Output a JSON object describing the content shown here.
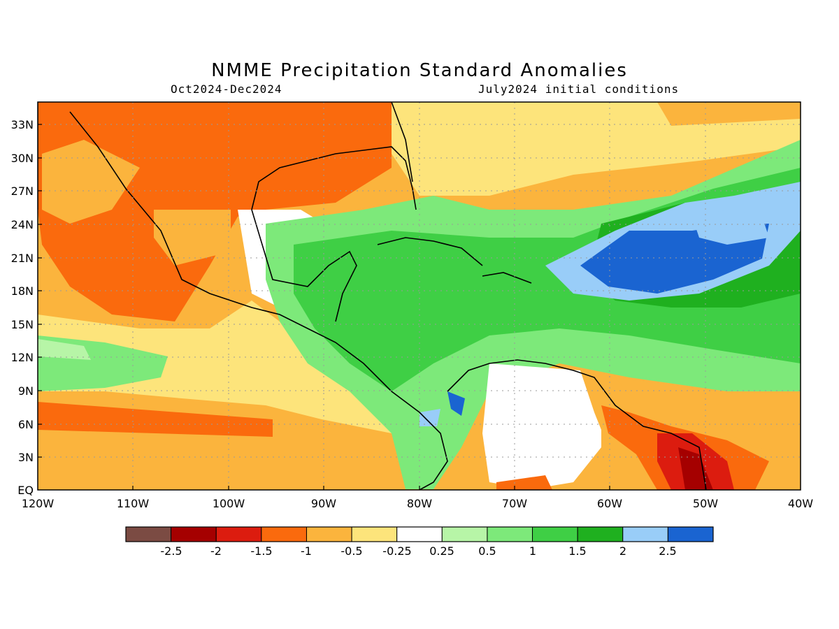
{
  "title": "NMME Precipitation Standard Anomalies",
  "period": "Oct2024-Dec2024",
  "initial_conditions": "July2024 initial conditions",
  "lat_labels": [
    "33N",
    "30N",
    "27N",
    "24N",
    "21N",
    "18N",
    "15N",
    "12N",
    "9N",
    "6N",
    "3N",
    "EQ"
  ],
  "lon_labels": [
    "120W",
    "110W",
    "100W",
    "90W",
    "80W",
    "70W",
    "60W",
    "50W",
    "40W"
  ],
  "colorbar": {
    "colors": [
      "#7b4b43",
      "#a50000",
      "#dc1c0f",
      "#fa6a0d",
      "#fbb43d",
      "#fde47b",
      "#ffffff",
      "#b7f5a7",
      "#7de97a",
      "#3fcf45",
      "#1fb01f",
      "#99cdf8",
      "#1a64d1"
    ],
    "labels": [
      "-2.5",
      "-2",
      "-1.5",
      "-1",
      "-0.5",
      "-0.25",
      "0.25",
      "0.5",
      "1",
      "1.5",
      "2",
      "2.5"
    ]
  },
  "map": {
    "lat_range": [
      0,
      35
    ],
    "lon_range": [
      -120,
      -40
    ],
    "background_category": "-0.5 to -0.25"
  }
}
